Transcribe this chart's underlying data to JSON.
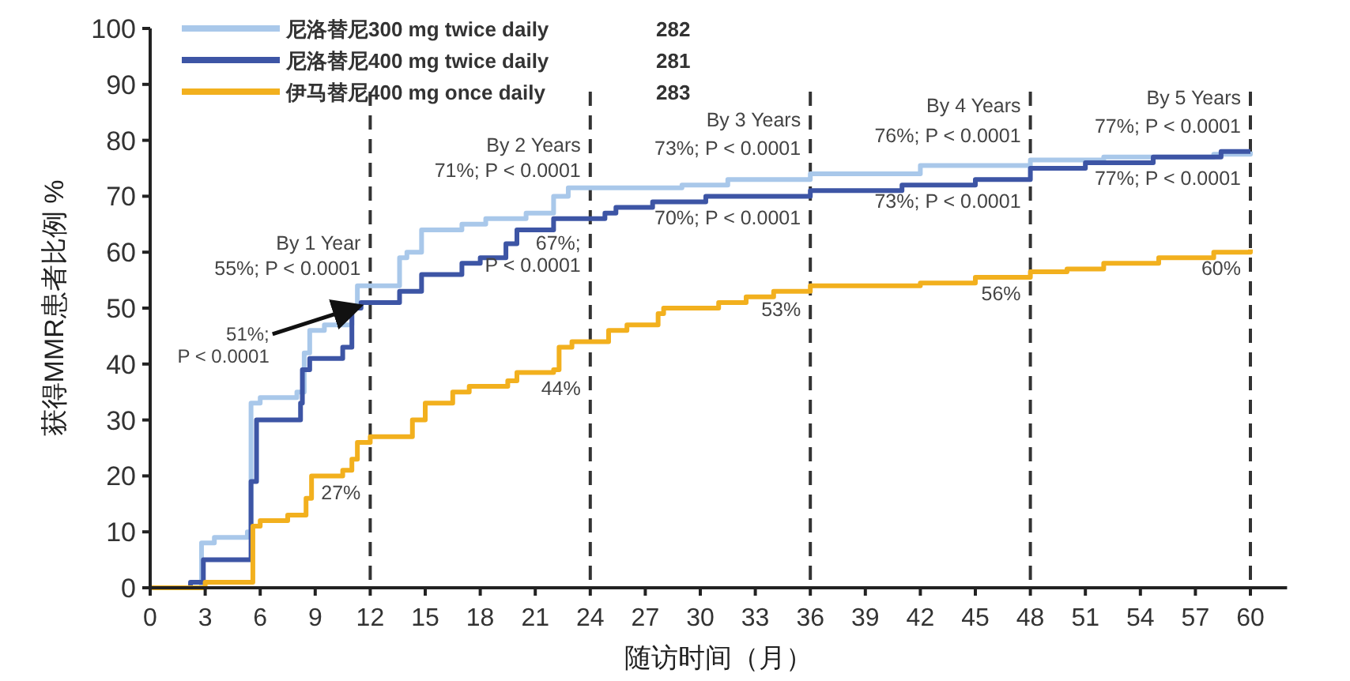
{
  "chart_data": {
    "type": "step",
    "xlabel": "随访时间（月）",
    "ylabel": "获得MMR患者比例 %",
    "legend": "top left",
    "line_style": "solid",
    "grid": false,
    "xlim": [
      0,
      62
    ],
    "ylim": [
      0,
      100
    ],
    "xticks": [
      0,
      3,
      6,
      9,
      12,
      15,
      18,
      21,
      24,
      27,
      30,
      33,
      36,
      39,
      42,
      45,
      48,
      51,
      54,
      57,
      60
    ],
    "yticks": [
      0,
      10,
      20,
      30,
      40,
      50,
      60,
      70,
      80,
      90,
      100
    ],
    "series": [
      {
        "name": "尼洛替尼300 mg twice daily",
        "color": "#a9c8ea",
        "x": [
          0,
          2.7,
          2.8,
          3.5,
          5.3,
          5.5,
          6,
          8,
          8.4,
          8.7,
          9.5,
          11,
          11.3,
          13.6,
          14,
          14.8,
          17,
          18.3,
          20.5,
          22,
          22.8,
          24,
          29,
          31.5,
          36,
          42,
          48,
          52,
          58,
          60
        ],
        "values": [
          0,
          0,
          8,
          9,
          10,
          33,
          34,
          35,
          42,
          46,
          47,
          50,
          54,
          59,
          60,
          64,
          65,
          66,
          67,
          70,
          71.5,
          71.5,
          72,
          73,
          74,
          75.5,
          76.5,
          77,
          77.5,
          78
        ]
      },
      {
        "name": "尼洛替尼400 mg twice daily",
        "color": "#3d55a5",
        "x": [
          0,
          2,
          2.2,
          2.9,
          5.5,
          5.8,
          8.2,
          8.3,
          8.7,
          10.5,
          11,
          11.5,
          13,
          13.6,
          14.8,
          17,
          18,
          19.4,
          20,
          22,
          24.8,
          25.4,
          27.4,
          30.3,
          36,
          41,
          45,
          48,
          51,
          54.7,
          58.4,
          60
        ],
        "values": [
          0,
          0,
          1,
          5,
          19,
          30,
          33,
          39,
          41,
          43,
          50,
          51,
          51,
          53,
          56,
          58,
          59,
          61.5,
          64,
          66,
          67,
          68,
          69,
          70,
          71,
          72,
          73,
          75,
          76,
          77,
          78,
          78
        ]
      },
      {
        "name": "伊马替尼400 mg once daily",
        "color": "#f2b01e",
        "x": [
          0,
          3,
          5.5,
          5.6,
          6,
          7.5,
          8.5,
          8.8,
          10.5,
          11,
          11.3,
          12,
          14.3,
          15,
          16.5,
          17.4,
          19.5,
          20,
          22,
          22.3,
          23,
          25,
          26,
          27.7,
          28,
          31,
          32.5,
          34,
          36,
          42,
          45,
          48,
          50,
          52,
          55,
          58,
          60
        ],
        "values": [
          0,
          1,
          1,
          11,
          12,
          13,
          16,
          20,
          21,
          23,
          26,
          27,
          30,
          33,
          35,
          36,
          37,
          38.5,
          39,
          43,
          44,
          46,
          47,
          49,
          50,
          51,
          52,
          53,
          54,
          54.5,
          55.5,
          56.5,
          57,
          58,
          59,
          60,
          60.5
        ]
      }
    ],
    "ref_lines": [
      {
        "axis": "x",
        "value": 12,
        "color": "#333333",
        "line_style": "dashed"
      },
      {
        "axis": "x",
        "value": 24,
        "color": "#333333",
        "line_style": "dashed"
      },
      {
        "axis": "x",
        "value": 36,
        "color": "#333333",
        "line_style": "dashed"
      },
      {
        "axis": "x",
        "value": 48,
        "color": "#333333",
        "line_style": "dashed"
      },
      {
        "axis": "x",
        "value": 60,
        "color": "#333333",
        "line_style": "dashed"
      }
    ],
    "annotations": [
      "282",
      "281",
      "283",
      {
        "text": "By 1 Year",
        "x": 12,
        "y": 60.5
      },
      {
        "text": "55%; P < 0.0001",
        "x": 12,
        "y": 56
      },
      {
        "text": "51%;\nP < 0.0001",
        "x": 11.5,
        "y": 51
      },
      {
        "text": "27%",
        "x": 12,
        "y": 15.8
      },
      {
        "text": "By 2 Years",
        "x": 24,
        "y": 78
      },
      {
        "text": "71%; P < 0.0001",
        "x": 24,
        "y": 73.5
      },
      {
        "text": "67%;\nP < 0.0001",
        "x": 24,
        "y": 60.5
      },
      {
        "text": "44%",
        "x": 24,
        "y": 34.5
      },
      {
        "text": "By 3 Years",
        "x": 36,
        "y": 82.5
      },
      {
        "text": "73%; P < 0.0001",
        "x": 36,
        "y": 77.4
      },
      {
        "text": "70%; P < 0.0001",
        "x": 36,
        "y": 65
      },
      {
        "text": "53%",
        "x": 36,
        "y": 48.6
      },
      {
        "text": "By 4 Years",
        "x": 48,
        "y": 85
      },
      {
        "text": "76%; P < 0.0001",
        "x": 48,
        "y": 79.7
      },
      {
        "text": "73%; P < 0.0001",
        "x": 48,
        "y": 68
      },
      {
        "text": "56%",
        "x": 48,
        "y": 51.4
      },
      {
        "text": "By 5 Years",
        "x": 60,
        "y": 86.4
      },
      {
        "text": "77%; P < 0.0001",
        "x": 60,
        "y": 81.4
      },
      {
        "text": "77%; P < 0.0001",
        "x": 60,
        "y": 72
      },
      {
        "text": "60%",
        "x": 60,
        "y": 56
      }
    ]
  }
}
